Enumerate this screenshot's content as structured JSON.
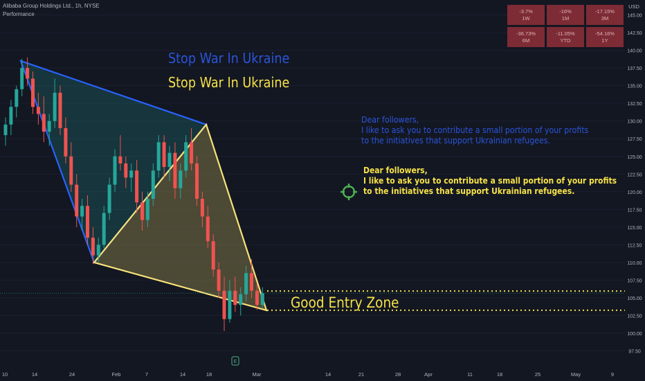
{
  "header": {
    "symbol": "Alibaba Group Holdings Ltd., 1h, NYSE",
    "indicator": "Performance"
  },
  "performance": [
    {
      "value": "-3.7%",
      "period": "1W"
    },
    {
      "value": "-16%",
      "period": "1M"
    },
    {
      "value": "-17.15%",
      "period": "3M"
    },
    {
      "value": "-36.73%",
      "period": "6M"
    },
    {
      "value": "-11.05%",
      "period": "YTD"
    },
    {
      "value": "-54.16%",
      "period": "1Y"
    }
  ],
  "annotations": {
    "title_blue": "Stop War In Ukraine",
    "title_yellow": "Stop War In Ukraine",
    "message_blue": [
      "Dear followers,",
      "I like to ask you to contribute a small portion of your profits",
      "to the initiatives that support Ukrainian refugees."
    ],
    "message_yellow": [
      "Dear followers,",
      "I like to ask you to contribute a small portion of your profits",
      "to the initiatives that support Ukrainian refugees."
    ],
    "entry_zone": "Good Entry Zone",
    "event_marker": "E"
  },
  "colors": {
    "background": "#131722",
    "blue_triangle": "#2962ff",
    "yellow_triangle": "#f7e27a",
    "up_candle": "#26a69a",
    "down_candle": "#ef5350",
    "perf_cell": "#7d2b35",
    "target_icon": "#4caf50"
  },
  "chart_data": {
    "type": "candlestick",
    "y_axis": {
      "unit": "USD",
      "range": [
        96,
        147
      ],
      "ticks": [
        97.5,
        100.0,
        102.5,
        105.0,
        107.5,
        110.0,
        112.5,
        115.0,
        117.5,
        120.0,
        122.5,
        125.0,
        127.5,
        130.0,
        132.5,
        135.0,
        137.5,
        140.0,
        142.5,
        145.0
      ]
    },
    "x_axis": {
      "ticks": [
        "10",
        "14",
        "24",
        "Feb",
        "7",
        "14",
        "18",
        "Mar",
        "14",
        "21",
        "28",
        "Apr",
        "11",
        "18",
        "25",
        "May",
        "9"
      ]
    },
    "price_labels": {
      "upper_zone": "105.96",
      "current": "105.66",
      "lower_zone": "103.24"
    },
    "price_levels": {
      "upper_zone": 105.96,
      "current": 105.66,
      "lower_zone": 103.24
    },
    "patterns": [
      {
        "name": "blue_triangle",
        "points": [
          [
            "Jan 10",
            138.5
          ],
          [
            "Feb 17",
            129.5
          ],
          [
            "Jan 27",
            110.0
          ]
        ]
      },
      {
        "name": "yellow_triangle",
        "points": [
          [
            "Jan 27",
            110.0
          ],
          [
            "Feb 17",
            129.5
          ],
          [
            "Mar 2",
            103.24
          ]
        ]
      }
    ],
    "series": [
      {
        "t": 0,
        "o": 128.0,
        "h": 130.5,
        "l": 126.5,
        "c": 129.5
      },
      {
        "t": 1,
        "o": 129.5,
        "h": 133.0,
        "l": 128.0,
        "c": 132.0
      },
      {
        "t": 2,
        "o": 132.0,
        "h": 135.0,
        "l": 130.5,
        "c": 134.5
      },
      {
        "t": 3,
        "o": 134.5,
        "h": 138.8,
        "l": 133.5,
        "c": 137.5
      },
      {
        "t": 4,
        "o": 137.5,
        "h": 139.0,
        "l": 135.0,
        "c": 136.0
      },
      {
        "t": 5,
        "o": 136.0,
        "h": 137.0,
        "l": 131.0,
        "c": 132.0
      },
      {
        "t": 6,
        "o": 132.0,
        "h": 134.0,
        "l": 129.5,
        "c": 131.0
      },
      {
        "t": 7,
        "o": 131.0,
        "h": 133.5,
        "l": 127.0,
        "c": 128.5
      },
      {
        "t": 8,
        "o": 128.5,
        "h": 131.0,
        "l": 126.5,
        "c": 130.0
      },
      {
        "t": 9,
        "o": 130.0,
        "h": 136.0,
        "l": 129.0,
        "c": 134.0
      },
      {
        "t": 10,
        "o": 134.0,
        "h": 135.0,
        "l": 128.0,
        "c": 129.0
      },
      {
        "t": 11,
        "o": 129.0,
        "h": 130.5,
        "l": 124.0,
        "c": 125.0
      },
      {
        "t": 12,
        "o": 125.0,
        "h": 127.0,
        "l": 120.0,
        "c": 121.0
      },
      {
        "t": 13,
        "o": 121.0,
        "h": 122.5,
        "l": 115.0,
        "c": 116.5
      },
      {
        "t": 14,
        "o": 116.5,
        "h": 119.0,
        "l": 114.5,
        "c": 118.0
      },
      {
        "t": 15,
        "o": 118.0,
        "h": 119.5,
        "l": 112.5,
        "c": 113.5
      },
      {
        "t": 16,
        "o": 113.5,
        "h": 115.0,
        "l": 109.8,
        "c": 111.0
      },
      {
        "t": 17,
        "o": 111.0,
        "h": 113.5,
        "l": 110.0,
        "c": 112.5
      },
      {
        "t": 18,
        "o": 112.5,
        "h": 118.0,
        "l": 112.0,
        "c": 117.0
      },
      {
        "t": 19,
        "o": 117.0,
        "h": 122.0,
        "l": 116.0,
        "c": 121.0
      },
      {
        "t": 20,
        "o": 121.0,
        "h": 126.0,
        "l": 120.0,
        "c": 125.0
      },
      {
        "t": 21,
        "o": 125.0,
        "h": 128.0,
        "l": 123.0,
        "c": 124.0
      },
      {
        "t": 22,
        "o": 124.0,
        "h": 125.0,
        "l": 120.5,
        "c": 122.0
      },
      {
        "t": 23,
        "o": 122.0,
        "h": 124.0,
        "l": 120.0,
        "c": 123.0
      },
      {
        "t": 24,
        "o": 123.0,
        "h": 124.5,
        "l": 117.0,
        "c": 118.5
      },
      {
        "t": 25,
        "o": 118.5,
        "h": 120.0,
        "l": 114.5,
        "c": 116.0
      },
      {
        "t": 26,
        "o": 116.0,
        "h": 120.0,
        "l": 115.0,
        "c": 119.0
      },
      {
        "t": 27,
        "o": 119.0,
        "h": 124.0,
        "l": 118.0,
        "c": 123.0
      },
      {
        "t": 28,
        "o": 123.0,
        "h": 128.0,
        "l": 122.0,
        "c": 127.0
      },
      {
        "t": 29,
        "o": 127.0,
        "h": 128.0,
        "l": 122.0,
        "c": 123.5
      },
      {
        "t": 30,
        "o": 123.5,
        "h": 126.5,
        "l": 121.5,
        "c": 125.5
      },
      {
        "t": 31,
        "o": 125.5,
        "h": 127.0,
        "l": 119.0,
        "c": 120.5
      },
      {
        "t": 32,
        "o": 120.5,
        "h": 124.0,
        "l": 119.0,
        "c": 123.0
      },
      {
        "t": 33,
        "o": 123.0,
        "h": 128.0,
        "l": 122.0,
        "c": 127.0
      },
      {
        "t": 34,
        "o": 127.0,
        "h": 129.0,
        "l": 123.0,
        "c": 124.0
      },
      {
        "t": 35,
        "o": 124.0,
        "h": 125.0,
        "l": 118.0,
        "c": 119.0
      },
      {
        "t": 36,
        "o": 119.0,
        "h": 120.0,
        "l": 115.0,
        "c": 116.5
      },
      {
        "t": 37,
        "o": 116.5,
        "h": 118.0,
        "l": 112.0,
        "c": 113.0
      },
      {
        "t": 38,
        "o": 113.0,
        "h": 114.0,
        "l": 108.0,
        "c": 109.0
      },
      {
        "t": 39,
        "o": 109.0,
        "h": 110.0,
        "l": 105.0,
        "c": 106.0
      },
      {
        "t": 40,
        "o": 106.0,
        "h": 108.0,
        "l": 100.3,
        "c": 102.0
      },
      {
        "t": 41,
        "o": 102.0,
        "h": 107.5,
        "l": 101.5,
        "c": 106.0
      },
      {
        "t": 42,
        "o": 106.0,
        "h": 108.0,
        "l": 103.0,
        "c": 104.0
      },
      {
        "t": 43,
        "o": 104.0,
        "h": 106.5,
        "l": 102.5,
        "c": 105.5
      },
      {
        "t": 44,
        "o": 105.5,
        "h": 109.5,
        "l": 104.5,
        "c": 108.5
      },
      {
        "t": 45,
        "o": 108.5,
        "h": 110.5,
        "l": 105.0,
        "c": 106.0
      },
      {
        "t": 46,
        "o": 106.0,
        "h": 107.0,
        "l": 103.3,
        "c": 104.0
      },
      {
        "t": 47,
        "o": 104.0,
        "h": 106.5,
        "l": 103.5,
        "c": 105.66
      }
    ]
  }
}
